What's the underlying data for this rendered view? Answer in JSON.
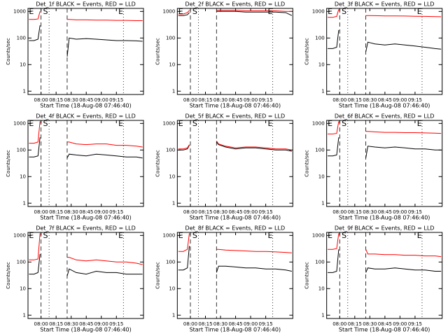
{
  "chart_data": [
    {
      "type": "line",
      "title": "Det_1f BLACK = Events, RED = LLD",
      "x_label": "Start Time (18-Aug-08 07:46:40)",
      "y_label": "Counts/sec",
      "log_y": true,
      "xlim": [
        "07:47",
        "09:42"
      ],
      "xticks": [
        "08:00",
        "08:15",
        "08:30",
        "08:45",
        "09:00",
        "09:15"
      ],
      "ylim": [
        0.75,
        1300
      ],
      "yticks": [
        1,
        10,
        100,
        1000
      ],
      "x": [
        "07:48",
        "07:53",
        "07:57",
        "07:59",
        "08:13",
        "08:26",
        "08:28",
        "08:35",
        "08:45",
        "08:55",
        "09:05",
        "09:15",
        "09:25",
        "09:35",
        "09:41"
      ],
      "series": [
        {
          "color": "#000000",
          "values": [
            80,
            80,
            90,
            300,
            null,
            20,
            100,
            90,
            95,
            90,
            85,
            80,
            80,
            78,
            75
          ]
        },
        {
          "color": "#ff0000",
          "values": [
            500,
            500,
            520,
            1000,
            null,
            500,
            500,
            480,
            480,
            470,
            470,
            460,
            460,
            450,
            450
          ]
        }
      ],
      "markers": [
        {
          "x": "08:00",
          "style": "dashed"
        },
        {
          "x": "08:08",
          "style": "dotted"
        },
        {
          "x": "08:26",
          "style": "dashed"
        },
        {
          "x": "09:22",
          "style": "dotted"
        }
      ],
      "annotations": [
        {
          "text": "E",
          "x": "07:48"
        },
        {
          "text": "S",
          "x": "08:02"
        },
        {
          "text": "E",
          "x": "09:17"
        }
      ]
    },
    {
      "type": "line",
      "title": "Det_2f BLACK = Events, RED = LLD",
      "x_label": "Start Time (18-Aug-08 07:46:40)",
      "y_label": "Counts/sec",
      "log_y": true,
      "xlim": [
        "07:47",
        "09:42"
      ],
      "xticks": [
        "08:00",
        "08:15",
        "08:30",
        "08:45",
        "09:00",
        "09:15"
      ],
      "ylim": [
        0.75,
        1300
      ],
      "yticks": [
        1,
        10,
        100,
        1000
      ],
      "x": [
        "07:48",
        "07:53",
        "07:57",
        "07:59",
        "08:13",
        "08:26",
        "08:28",
        "08:35",
        "08:45",
        "08:55",
        "09:05",
        "09:15",
        "09:25",
        "09:35",
        "09:41"
      ],
      "series": [
        {
          "color": "#000000",
          "values": [
            700,
            700,
            750,
            900,
            null,
            1000,
            1000,
            1000,
            1000,
            950,
            950,
            950,
            950,
            900,
            700
          ]
        },
        {
          "color": "#ff0000",
          "values": [
            800,
            800,
            900,
            1100,
            null,
            1100,
            1100,
            1100,
            1100,
            1050,
            1050,
            1050,
            1050,
            1000,
            1000
          ]
        }
      ],
      "markers": [
        {
          "x": "08:00",
          "style": "dashed"
        },
        {
          "x": "08:08",
          "style": "dotted"
        },
        {
          "x": "08:26",
          "style": "dashed"
        },
        {
          "x": "09:22",
          "style": "dotted"
        }
      ],
      "annotations": [
        {
          "text": "E",
          "x": "07:48"
        },
        {
          "text": "S",
          "x": "08:02"
        },
        {
          "text": "E",
          "x": "09:17"
        }
      ]
    },
    {
      "type": "line",
      "title": "Det_3f BLACK = Events, RED = LLD",
      "x_label": "Start Time (18-Aug-08 07:46:40)",
      "y_label": "Counts/sec",
      "log_y": true,
      "xlim": [
        "07:47",
        "09:42"
      ],
      "xticks": [
        "08:00",
        "08:15",
        "08:30",
        "08:45",
        "09:00",
        "09:15"
      ],
      "ylim": [
        0.75,
        1300
      ],
      "yticks": [
        1,
        10,
        100,
        1000
      ],
      "x": [
        "07:48",
        "07:53",
        "07:57",
        "07:59",
        "08:13",
        "08:26",
        "08:28",
        "08:35",
        "08:45",
        "08:55",
        "09:05",
        "09:15",
        "09:25",
        "09:35",
        "09:41"
      ],
      "series": [
        {
          "color": "#000000",
          "values": [
            40,
            40,
            45,
            200,
            null,
            30,
            70,
            60,
            55,
            60,
            55,
            50,
            45,
            40,
            38
          ]
        },
        {
          "color": "#ff0000",
          "values": [
            600,
            600,
            650,
            1200,
            null,
            700,
            700,
            690,
            680,
            680,
            670,
            660,
            650,
            640,
            630
          ]
        }
      ],
      "markers": [
        {
          "x": "08:00",
          "style": "dashed"
        },
        {
          "x": "08:08",
          "style": "dotted"
        },
        {
          "x": "08:26",
          "style": "dashed"
        },
        {
          "x": "09:22",
          "style": "dotted"
        }
      ],
      "annotations": [
        {
          "text": "E",
          "x": "07:48"
        },
        {
          "text": "S",
          "x": "08:02"
        },
        {
          "text": "E",
          "x": "09:17"
        }
      ]
    },
    {
      "type": "line",
      "title": "Det_4f BLACK = Events, RED = LLD",
      "x_label": "Start Time (18-Aug-08 07:46:40)",
      "y_label": "Counts/sec",
      "log_y": true,
      "xlim": [
        "07:47",
        "09:42"
      ],
      "xticks": [
        "08:00",
        "08:15",
        "08:30",
        "08:45",
        "09:00",
        "09:15"
      ],
      "ylim": [
        0.75,
        1300
      ],
      "yticks": [
        1,
        10,
        100,
        1000
      ],
      "x": [
        "07:48",
        "07:53",
        "07:57",
        "07:59",
        "08:13",
        "08:26",
        "08:28",
        "08:35",
        "08:45",
        "08:55",
        "09:05",
        "09:15",
        "09:25",
        "09:35",
        "09:41"
      ],
      "series": [
        {
          "color": "#000000",
          "values": [
            55,
            55,
            60,
            300,
            null,
            50,
            70,
            65,
            60,
            70,
            65,
            60,
            55,
            55,
            50
          ]
        },
        {
          "color": "#ff0000",
          "values": [
            180,
            180,
            200,
            1200,
            null,
            200,
            200,
            170,
            160,
            170,
            170,
            150,
            150,
            140,
            130
          ]
        }
      ],
      "markers": [
        {
          "x": "08:00",
          "style": "dashed"
        },
        {
          "x": "08:08",
          "style": "dotted"
        },
        {
          "x": "08:26",
          "style": "dashed"
        },
        {
          "x": "09:22",
          "style": "dotted"
        }
      ],
      "annotations": [
        {
          "text": "E",
          "x": "07:48"
        },
        {
          "text": "S",
          "x": "08:02"
        },
        {
          "text": "E",
          "x": "09:17"
        }
      ]
    },
    {
      "type": "line",
      "title": "Det_5f BLACK = Events, RED = LLD",
      "x_label": "Start Time (18-Aug-08 07:46:40)",
      "y_label": "Counts/sec",
      "log_y": true,
      "xlim": [
        "07:47",
        "09:42"
      ],
      "xticks": [
        "08:00",
        "08:15",
        "08:30",
        "08:45",
        "09:00",
        "09:15"
      ],
      "ylim": [
        0.75,
        1300
      ],
      "yticks": [
        1,
        10,
        100,
        1000
      ],
      "x": [
        "07:48",
        "07:53",
        "07:57",
        "07:59",
        "08:13",
        "08:26",
        "08:28",
        "08:35",
        "08:45",
        "08:55",
        "09:05",
        "09:15",
        "09:25",
        "09:35",
        "09:41"
      ],
      "series": [
        {
          "color": "#000000",
          "values": [
            100,
            100,
            110,
            150,
            null,
            200,
            160,
            130,
            110,
            120,
            120,
            110,
            100,
            100,
            90
          ]
        },
        {
          "color": "#ff0000",
          "values": [
            110,
            110,
            120,
            160,
            null,
            220,
            170,
            140,
            120,
            130,
            130,
            120,
            110,
            110,
            100
          ]
        }
      ],
      "markers": [
        {
          "x": "08:00",
          "style": "dashed"
        },
        {
          "x": "08:08",
          "style": "dotted"
        },
        {
          "x": "08:26",
          "style": "dashed"
        },
        {
          "x": "09:22",
          "style": "dotted"
        }
      ],
      "annotations": [
        {
          "text": "E",
          "x": "07:48"
        },
        {
          "text": "S",
          "x": "08:02"
        },
        {
          "text": "E",
          "x": "09:17"
        }
      ]
    },
    {
      "type": "line",
      "title": "Det_6f BLACK = Events, RED = LLD",
      "x_label": "Start Time (18-Aug-08 07:46:40)",
      "y_label": "Counts/sec",
      "log_y": true,
      "xlim": [
        "07:47",
        "09:42"
      ],
      "xticks": [
        "08:00",
        "08:15",
        "08:30",
        "08:45",
        "09:00",
        "09:15"
      ],
      "ylim": [
        0.75,
        1300
      ],
      "yticks": [
        1,
        10,
        100,
        1000
      ],
      "x": [
        "07:48",
        "07:53",
        "07:57",
        "07:59",
        "08:13",
        "08:26",
        "08:28",
        "08:35",
        "08:45",
        "08:55",
        "09:05",
        "09:15",
        "09:25",
        "09:35",
        "09:41"
      ],
      "series": [
        {
          "color": "#000000",
          "values": [
            60,
            60,
            65,
            300,
            null,
            50,
            140,
            130,
            120,
            130,
            120,
            110,
            110,
            100,
            100
          ]
        },
        {
          "color": "#ff0000",
          "values": [
            400,
            400,
            420,
            1200,
            null,
            500,
            500,
            480,
            460,
            460,
            450,
            450,
            440,
            430,
            420
          ]
        }
      ],
      "markers": [
        {
          "x": "08:00",
          "style": "dashed"
        },
        {
          "x": "08:08",
          "style": "dotted"
        },
        {
          "x": "08:26",
          "style": "dashed"
        },
        {
          "x": "09:22",
          "style": "dotted"
        }
      ],
      "annotations": [
        {
          "text": "E",
          "x": "07:48"
        },
        {
          "text": "S",
          "x": "08:02"
        },
        {
          "text": "E",
          "x": "09:17"
        }
      ]
    },
    {
      "type": "line",
      "title": "Det_7f BLACK = Events, RED = LLD",
      "x_label": "Start Time (18-Aug-08 07:46:40)",
      "y_label": "Counts/sec",
      "log_y": true,
      "xlim": [
        "07:47",
        "09:42"
      ],
      "xticks": [
        "08:00",
        "08:15",
        "08:30",
        "08:45",
        "09:00",
        "09:15"
      ],
      "ylim": [
        0.75,
        1300
      ],
      "yticks": [
        1,
        10,
        100,
        1000
      ],
      "x": [
        "07:48",
        "07:53",
        "07:57",
        "07:59",
        "08:13",
        "08:26",
        "08:28",
        "08:35",
        "08:45",
        "08:55",
        "09:05",
        "09:15",
        "09:25",
        "09:35",
        "09:41"
      ],
      "series": [
        {
          "color": "#000000",
          "values": [
            35,
            35,
            40,
            200,
            null,
            30,
            55,
            40,
            35,
            45,
            40,
            40,
            35,
            35,
            35
          ]
        },
        {
          "color": "#ff0000",
          "values": [
            120,
            120,
            130,
            1200,
            null,
            150,
            150,
            120,
            110,
            120,
            110,
            100,
            100,
            90,
            80
          ]
        }
      ],
      "markers": [
        {
          "x": "08:00",
          "style": "dashed"
        },
        {
          "x": "08:08",
          "style": "dotted"
        },
        {
          "x": "08:26",
          "style": "dashed"
        },
        {
          "x": "09:22",
          "style": "dotted"
        }
      ],
      "annotations": [
        {
          "text": "E",
          "x": "07:48"
        },
        {
          "text": "S",
          "x": "08:02"
        },
        {
          "text": "E",
          "x": "09:17"
        }
      ]
    },
    {
      "type": "line",
      "title": "Det_8f BLACK = Events, RED = LLD",
      "x_label": "Start Time (18-Aug-08 07:46:40)",
      "y_label": "Counts/sec",
      "log_y": true,
      "xlim": [
        "07:47",
        "09:42"
      ],
      "xticks": [
        "08:00",
        "08:15",
        "08:30",
        "08:45",
        "09:00",
        "09:15"
      ],
      "ylim": [
        0.75,
        1300
      ],
      "yticks": [
        1,
        10,
        100,
        1000
      ],
      "x": [
        "07:48",
        "07:53",
        "07:57",
        "07:59",
        "08:13",
        "08:26",
        "08:28",
        "08:35",
        "08:45",
        "08:55",
        "09:05",
        "09:15",
        "09:25",
        "09:35",
        "09:41"
      ],
      "series": [
        {
          "color": "#000000",
          "values": [
            50,
            50,
            60,
            400,
            null,
            40,
            70,
            70,
            65,
            60,
            60,
            55,
            55,
            50,
            45
          ]
        },
        {
          "color": "#ff0000",
          "values": [
            250,
            250,
            300,
            1200,
            null,
            300,
            300,
            280,
            270,
            260,
            250,
            250,
            240,
            230,
            220
          ]
        }
      ],
      "markers": [
        {
          "x": "08:00",
          "style": "dashed"
        },
        {
          "x": "08:08",
          "style": "dotted"
        },
        {
          "x": "08:26",
          "style": "dashed"
        },
        {
          "x": "09:22",
          "style": "dotted"
        }
      ],
      "annotations": [
        {
          "text": "E",
          "x": "07:48"
        },
        {
          "text": "S",
          "x": "08:02"
        },
        {
          "text": "E",
          "x": "09:17"
        }
      ]
    },
    {
      "type": "line",
      "title": "Det_9f BLACK = Events, RED = LLD",
      "x_label": "Start Time (18-Aug-08 07:46:40)",
      "y_label": "Counts/sec",
      "log_y": true,
      "xlim": [
        "07:47",
        "09:42"
      ],
      "xticks": [
        "08:00",
        "08:15",
        "08:30",
        "08:45",
        "09:00",
        "09:15"
      ],
      "ylim": [
        0.75,
        1300
      ],
      "yticks": [
        1,
        10,
        100,
        1000
      ],
      "x": [
        "07:48",
        "07:53",
        "07:57",
        "07:59",
        "08:13",
        "08:26",
        "08:28",
        "08:35",
        "08:45",
        "08:55",
        "09:05",
        "09:15",
        "09:25",
        "09:35",
        "09:41"
      ],
      "series": [
        {
          "color": "#000000",
          "values": [
            40,
            40,
            45,
            300,
            null,
            40,
            60,
            55,
            55,
            60,
            55,
            50,
            50,
            45,
            45
          ]
        },
        {
          "color": "#ff0000",
          "values": [
            300,
            300,
            320,
            1200,
            null,
            300,
            200,
            200,
            190,
            190,
            180,
            180,
            170,
            170,
            160
          ]
        }
      ],
      "markers": [
        {
          "x": "08:00",
          "style": "dashed"
        },
        {
          "x": "08:08",
          "style": "dotted"
        },
        {
          "x": "08:26",
          "style": "dashed"
        },
        {
          "x": "09:22",
          "style": "dotted"
        }
      ],
      "annotations": [
        {
          "text": "E",
          "x": "07:48"
        },
        {
          "text": "S",
          "x": "08:02"
        },
        {
          "text": "E",
          "x": "09:17"
        }
      ]
    }
  ]
}
